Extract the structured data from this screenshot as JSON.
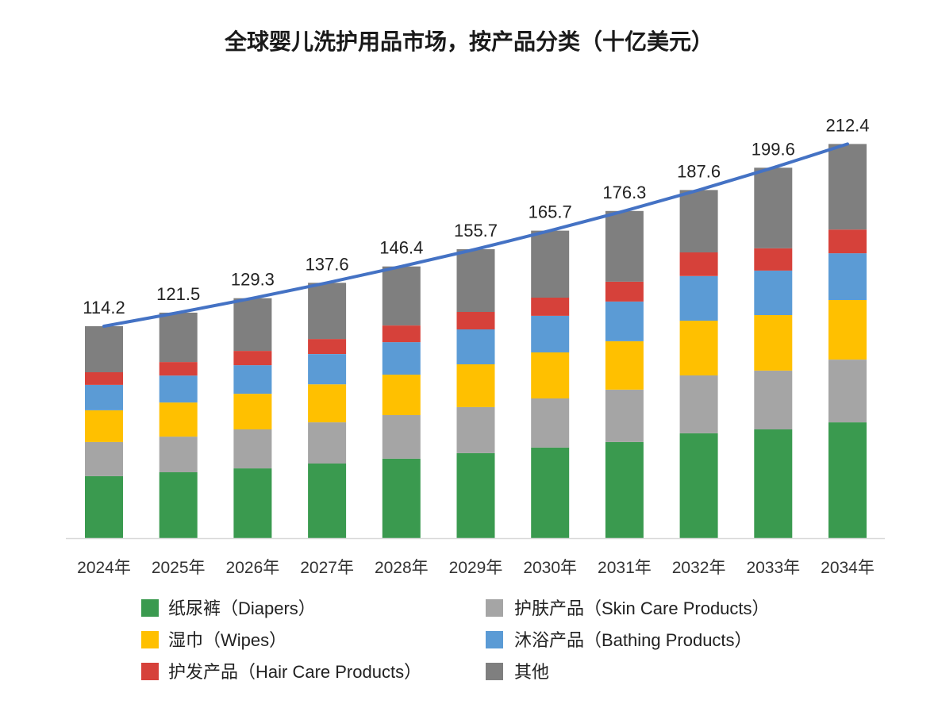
{
  "chart_data": {
    "type": "bar",
    "stacked": true,
    "title": "全球婴儿洗护用品市场，按产品分类（十亿美元）",
    "categories": [
      "2024年",
      "2025年",
      "2026年",
      "2027年",
      "2028年",
      "2029年",
      "2030年",
      "2031年",
      "2032年",
      "2033年",
      "2034年"
    ],
    "series": [
      {
        "name": "纸尿裤（Diapers）",
        "color": "#3a9a4f",
        "values": [
          33.4,
          35.5,
          37.6,
          40.2,
          42.8,
          45.8,
          48.8,
          51.8,
          56.5,
          58.6,
          62.4
        ]
      },
      {
        "name": "护肤产品（Skin Care Products）",
        "color": "#a5a5a5",
        "values": [
          18.4,
          19.2,
          21.0,
          22.2,
          23.5,
          24.8,
          26.5,
          28.2,
          31.2,
          31.7,
          33.8
        ]
      },
      {
        "name": "湿巾（Wipes）",
        "color": "#ffc000",
        "values": [
          17.1,
          18.4,
          19.2,
          20.5,
          21.8,
          23.1,
          24.8,
          26.1,
          29.5,
          29.9,
          32.1
        ]
      },
      {
        "name": "沐浴产品（Bathing Products）",
        "color": "#5b9bd5",
        "values": [
          13.7,
          14.5,
          15.4,
          16.3,
          17.5,
          18.8,
          19.7,
          21.4,
          24.0,
          24.0,
          25.2
        ]
      },
      {
        "name": "护发产品（Hair Care Products）",
        "color": "#d6413a",
        "values": [
          6.8,
          7.3,
          7.7,
          8.1,
          9.0,
          9.4,
          9.8,
          10.7,
          12.8,
          12.0,
          12.8
        ]
      },
      {
        "name": "其他",
        "color": "#7f7f7f",
        "values": [
          24.8,
          26.6,
          28.4,
          30.3,
          31.8,
          33.8,
          36.1,
          38.1,
          33.6,
          43.4,
          46.1
        ]
      }
    ],
    "totals": [
      114.2,
      121.5,
      129.3,
      137.6,
      146.4,
      155.7,
      165.7,
      176.3,
      187.6,
      199.6,
      212.4
    ],
    "total_line_color": "#4472c4",
    "axis_color": "#d9d9d9",
    "legend_position": "bottom",
    "grid": false
  }
}
